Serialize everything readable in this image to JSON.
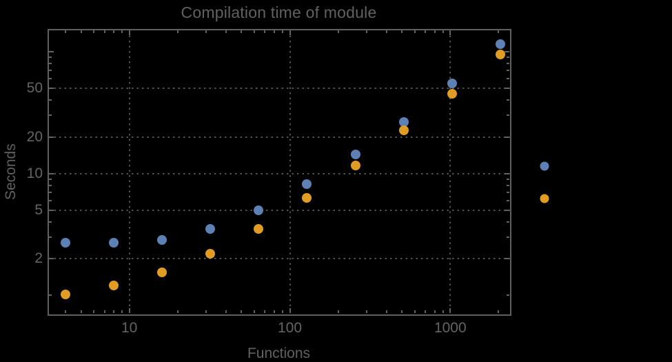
{
  "colors": {
    "background": "#000000",
    "frame": "#606060",
    "grid": "#525252",
    "text": "#616161",
    "series_blue": "#5e81b5",
    "series_orange": "#e19c24"
  },
  "chart_data": {
    "type": "scatter",
    "title": "Compilation time of module",
    "xlabel": "Functions",
    "ylabel": "Seconds",
    "x_scale": "log",
    "y_scale": "log",
    "xlim": [
      3.1,
      2340
    ],
    "ylim": [
      0.71,
      150
    ],
    "grid": {
      "style": "dotted",
      "x_values": [
        10,
        100,
        1000
      ],
      "y_values": [
        2,
        5,
        10,
        20,
        50
      ]
    },
    "x": [
      4,
      8,
      16,
      32,
      64,
      128,
      256,
      512,
      1024,
      2048
    ],
    "series": [
      {
        "name": "series-blue",
        "color": "#5e81b5",
        "values": [
          2.7,
          2.7,
          2.85,
          3.5,
          5.0,
          8.2,
          14.3,
          26.5,
          55,
          115
        ]
      },
      {
        "name": "series-orange",
        "color": "#e19c24",
        "values": [
          1.02,
          1.2,
          1.55,
          2.2,
          3.5,
          6.3,
          11.6,
          22.5,
          45,
          95
        ]
      }
    ],
    "x_ticks": {
      "major": [
        {
          "v": 10,
          "label": "10"
        },
        {
          "v": 100,
          "label": "100"
        },
        {
          "v": 1000,
          "label": "1000"
        }
      ],
      "minor": [
        4,
        5,
        6,
        7,
        8,
        9,
        20,
        30,
        40,
        50,
        60,
        70,
        80,
        90,
        200,
        300,
        400,
        500,
        600,
        700,
        800,
        900,
        2000
      ]
    },
    "y_ticks": {
      "major": [
        {
          "v": 2,
          "label": "2"
        },
        {
          "v": 5,
          "label": "5"
        },
        {
          "v": 10,
          "label": "10"
        },
        {
          "v": 20,
          "label": "20"
        },
        {
          "v": 50,
          "label": "50"
        },
        {
          "v": 100,
          "label": ""
        }
      ],
      "minor": [
        1,
        3,
        4,
        6,
        7,
        8,
        9,
        30,
        40,
        60,
        70,
        80,
        90
      ]
    },
    "legend": {
      "markers": [
        {
          "name": "series-blue",
          "color": "#5e81b5"
        },
        {
          "name": "series-orange",
          "color": "#e19c24"
        }
      ]
    }
  }
}
